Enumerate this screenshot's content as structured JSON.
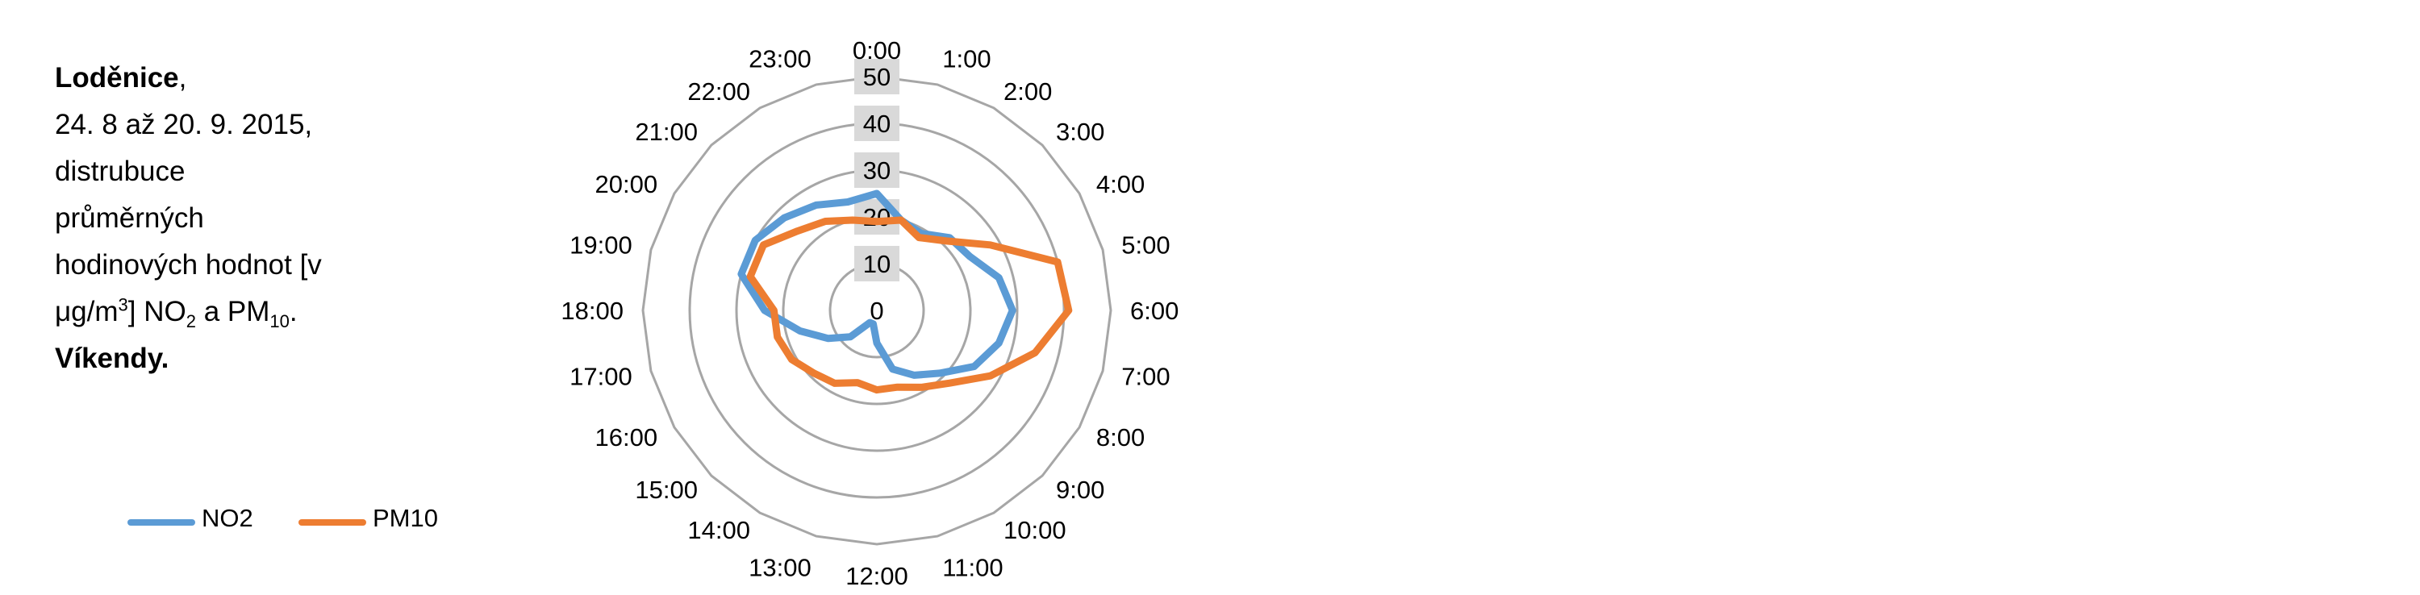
{
  "caption": {
    "place": "Loděnice",
    "comma": ",",
    "line_dates": "24. 8 až 20. 9. 2015,",
    "line_a": "distrubuce",
    "line_b": "průměrných",
    "line_c": "hodinových hodnot [v",
    "unit_a": "μg/m",
    "unit_sup": "3",
    "unit_b": "] NO",
    "no2_sub": "2",
    "and_pm": " a PM",
    "pm_sub": "10",
    "period": ".",
    "weekend": "Víkendy."
  },
  "colors": {
    "no2": "#5B9BD5",
    "pm10": "#ED7D31",
    "grid": "#A6A6A6",
    "axis_label_bg": "#D9D9D9"
  },
  "chart_data": {
    "type": "radar",
    "categories": [
      "0:00",
      "1:00",
      "2:00",
      "3:00",
      "4:00",
      "5:00",
      "6:00",
      "7:00",
      "8:00",
      "9:00",
      "10:00",
      "11:00",
      "12:00",
      "13:00",
      "14:00",
      "15:00",
      "16:00",
      "17:00",
      "18:00",
      "19:00",
      "20:00",
      "21:00",
      "22:00",
      "23:00"
    ],
    "r_ticks": [
      "0",
      "10",
      "20",
      "30",
      "40",
      "50"
    ],
    "rlim": [
      0,
      50
    ],
    "grid": true,
    "legend_position": "bottom-left",
    "series": [
      {
        "name": "NO2",
        "color_key": "no2",
        "values": [
          25,
          20,
          19,
          22,
          23,
          27,
          29,
          27,
          24,
          19,
          16,
          13,
          7,
          3,
          3,
          8,
          12,
          17,
          24,
          30,
          30,
          28,
          26,
          24
        ]
      },
      {
        "name": "PM10",
        "color_key": "pm10",
        "values": [
          19,
          20,
          18,
          21,
          28,
          40,
          41,
          35,
          28,
          22,
          19,
          17,
          17,
          16,
          18,
          19,
          21,
          22,
          22,
          28,
          28,
          24,
          22,
          20
        ]
      }
    ]
  }
}
